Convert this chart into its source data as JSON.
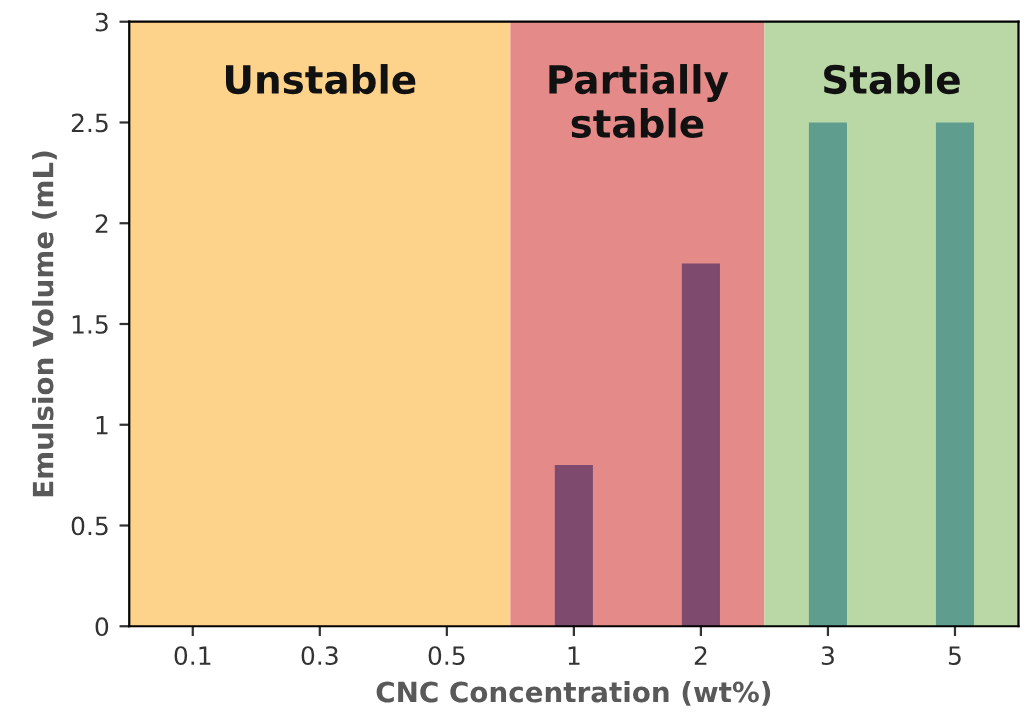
{
  "chart_data": {
    "type": "bar",
    "xlabel": "CNC Concentration (wt%)",
    "ylabel": "Emulsion Volume (mL)",
    "categories": [
      "0.1",
      "0.3",
      "0.5",
      "1",
      "2",
      "3",
      "5"
    ],
    "values": [
      0,
      0,
      0,
      0.8,
      1.8,
      2.5,
      2.5
    ],
    "colors": [
      "#7e4b6e",
      "#7e4b6e",
      "#7e4b6e",
      "#7e4b6e",
      "#7e4b6e",
      "#5f9e8f",
      "#5f9e8f"
    ],
    "ylim": [
      0,
      3
    ],
    "yticks": [
      0,
      0.5,
      1,
      1.5,
      2,
      2.5,
      3
    ],
    "grid": false,
    "bands": [
      {
        "axis": "x",
        "from": "0.1",
        "to": "0.5",
        "label": "Unstable",
        "color": "#fdd38c"
      },
      {
        "axis": "x",
        "from": "1",
        "to": "2",
        "label": "Partially\nstable",
        "color": "#e48b8a"
      },
      {
        "axis": "x",
        "from": "3",
        "to": "5",
        "label": "Stable",
        "color": "#bad8a6"
      }
    ]
  }
}
